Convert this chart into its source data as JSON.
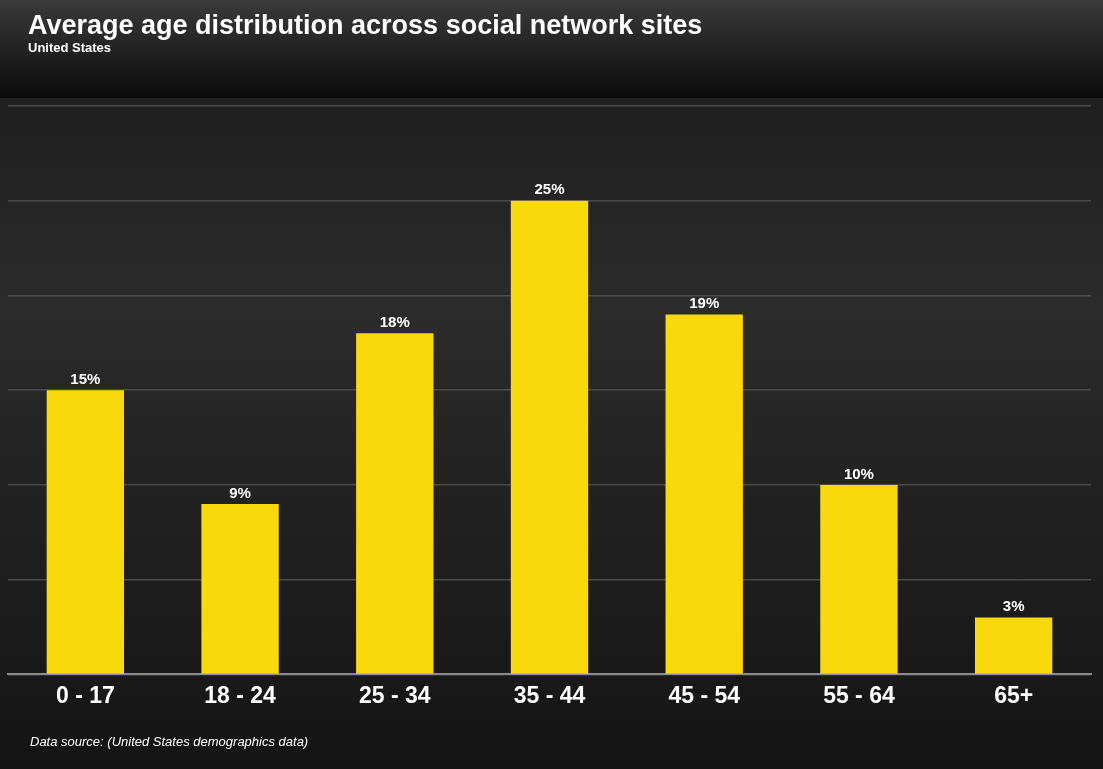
{
  "chart_data": {
    "type": "bar",
    "title": "Average age distribution across social network sites",
    "subtitle": "United States",
    "categories": [
      "0 - 17",
      "18 - 24",
      "25 - 34",
      "35 - 44",
      "45 - 54",
      "55 - 64",
      "65+"
    ],
    "values": [
      15,
      9,
      18,
      25,
      19,
      10,
      3
    ],
    "color": "#f7d90c",
    "value_labels": [
      "15%",
      "9%",
      "18%",
      "25%",
      "19%",
      "10%",
      "3%"
    ],
    "ylim": [
      0,
      30
    ],
    "yticks": [
      {
        "value": 0,
        "label": null
      },
      {
        "value": 5,
        "label": null
      },
      {
        "value": 10,
        "label": null
      },
      {
        "value": 15,
        "label": null
      },
      {
        "value": 20,
        "label": null
      },
      {
        "value": 25,
        "label": null
      },
      {
        "value": 30,
        "label": null
      }
    ],
    "tick_labels": "x",
    "grid": "y",
    "legend": false,
    "annotations": [
      "Data source: (United States demographics data)"
    ]
  }
}
